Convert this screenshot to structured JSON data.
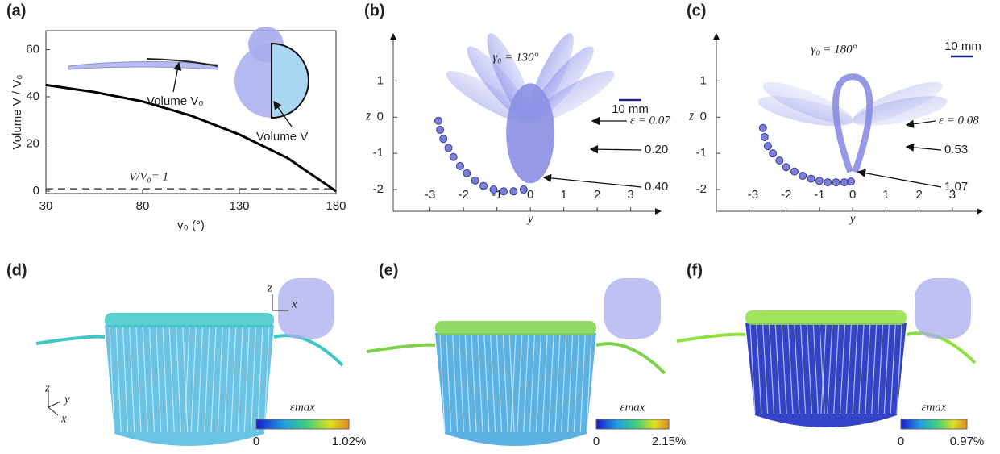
{
  "chart_data": [
    {
      "type": "line",
      "panel_label": "(a)",
      "x_label": "γ₀ (°)",
      "y_label": "Volume V / V₀",
      "x": [
        30,
        55,
        80,
        105,
        130,
        155,
        180
      ],
      "series": [
        {
          "color": "#000000",
          "values": [
            45,
            42,
            38,
            32,
            24,
            14,
            0
          ]
        }
      ],
      "reference_line": {
        "value": 1,
        "label": "V/V₀= 1"
      },
      "annotations": [
        "Volume V₀",
        "Volume V"
      ],
      "xlim": [
        30,
        180
      ],
      "xticks": [
        30,
        80,
        130,
        180
      ],
      "ylim": [
        -1,
        68
      ],
      "yticks": [
        0,
        20,
        40,
        60
      ]
    },
    {
      "type": "scatter",
      "panel_label": "(b)",
      "x_label": "ȳ",
      "y_label": "z̄",
      "x": [
        -2.75,
        -2.7,
        -2.6,
        -2.45,
        -2.3,
        -2.1,
        -1.9,
        -1.65,
        -1.4,
        -1.1,
        -0.8,
        -0.5,
        -0.2
      ],
      "values": [
        -0.1,
        -0.35,
        -0.6,
        -0.85,
        -1.1,
        -1.35,
        -1.55,
        -1.75,
        -1.9,
        -2.0,
        -2.05,
        -2.05,
        -2.0
      ],
      "color": "#7b7fd6",
      "annotations": [
        "γ₀ = 130°",
        "10 mm",
        "ε = 0.07",
        "0.20",
        "0.40"
      ],
      "xlim": [
        -4.1,
        3.9
      ],
      "xticks": [
        -3,
        -2,
        -1,
        0,
        1,
        2,
        3
      ],
      "ylim": [
        -2.6,
        2.3
      ],
      "yticks": [
        -2,
        -1,
        0,
        1
      ]
    },
    {
      "type": "scatter",
      "panel_label": "(c)",
      "x_label": "ȳ",
      "y_label": "z̄",
      "x": [
        -2.7,
        -2.65,
        -2.55,
        -2.4,
        -2.2,
        -2.0,
        -1.75,
        -1.5,
        -1.25,
        -1.0,
        -0.75,
        -0.5,
        -0.25,
        -0.05
      ],
      "values": [
        -0.3,
        -0.55,
        -0.8,
        -1.0,
        -1.2,
        -1.38,
        -1.5,
        -1.62,
        -1.7,
        -1.76,
        -1.8,
        -1.8,
        -1.8,
        -1.78
      ],
      "color": "#7b7fd6",
      "annotations": [
        "γ₀ = 180°",
        "10 mm",
        "ε = 0.08",
        "0.53",
        "1.07"
      ],
      "xlim": [
        -4.1,
        3.9
      ],
      "xticks": [
        -3,
        -2,
        -1,
        0,
        1,
        2,
        3
      ],
      "ylim": [
        -2.6,
        2.3
      ],
      "yticks": [
        -2,
        -1,
        0,
        1
      ]
    }
  ],
  "renders": [
    {
      "panel_label": "(d)",
      "colorbar_title": "εmax",
      "colorbar_min": "0",
      "colorbar_max": "1.02%",
      "triad_labels": [
        "z",
        "y",
        "x"
      ],
      "inset_axes": [
        "z",
        "x"
      ]
    },
    {
      "panel_label": "(e)",
      "colorbar_title": "εmax",
      "colorbar_min": "0",
      "colorbar_max": "2.15%"
    },
    {
      "panel_label": "(f)",
      "colorbar_title": "εmax",
      "colorbar_min": "0",
      "colorbar_max": "0.97%"
    }
  ]
}
